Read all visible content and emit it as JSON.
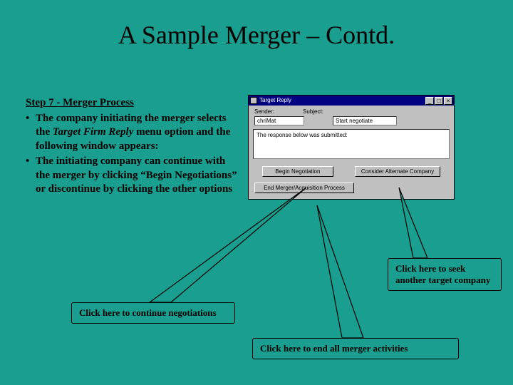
{
  "slide": {
    "title": "A Sample Merger – Contd.",
    "background_color": "#1a9e8f"
  },
  "body": {
    "step_heading": "Step 7 - Merger Process",
    "bullets": [
      "The company initiating the merger selects the Target Firm Reply menu option and the following window appears:",
      "The initiating company can continue with the merger by clicking “Begin Negotiations” or discontinue by clicking the other options"
    ],
    "italic_phrase": "Target Firm Reply"
  },
  "dialog": {
    "title": "Target Reply",
    "sender_label": "Sender:",
    "sender_value": "chriMat",
    "subject_label": "Subject:",
    "subject_value": "Start negotiate",
    "message": "The response below was submitted:",
    "buttons": {
      "begin": "Begin Negotiation",
      "consider": "Consider Alternate Company",
      "end": "End Merger/Acquisition Process"
    },
    "titlebar_color": "#000080",
    "chrome_color": "#c0c0c0"
  },
  "callouts": {
    "seek_another": "Click here to seek another target company",
    "continue": "Click here to continue negotiations",
    "end_all": "Click here to end all merger activities"
  },
  "arrow_color": "#1a9e8f",
  "arrow_stroke": "#000000"
}
